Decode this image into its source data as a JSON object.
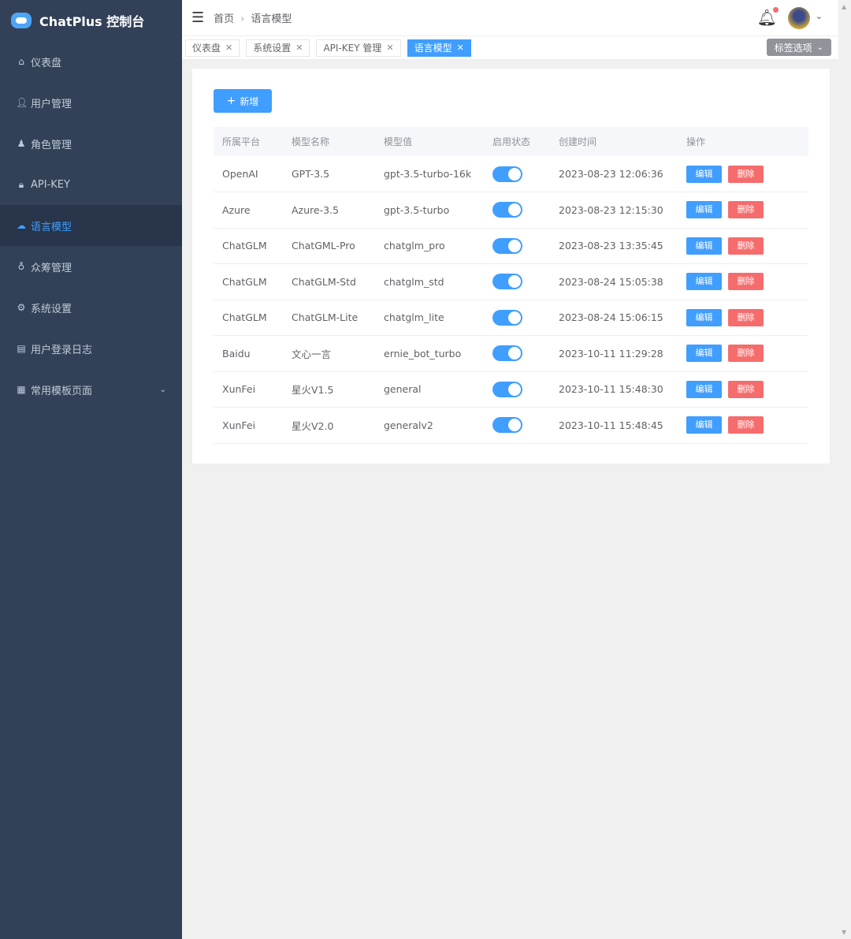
{
  "app": {
    "title": "ChatPlus 控制台"
  },
  "sidebar": {
    "items": [
      {
        "label": "仪表盘",
        "icon": "home-icon"
      },
      {
        "label": "用户管理",
        "icon": "user-icon"
      },
      {
        "label": "角色管理",
        "icon": "role-icon"
      },
      {
        "label": "API-KEY",
        "icon": "lock-icon"
      },
      {
        "label": "语言模型",
        "icon": "cloud-icon",
        "active": true
      },
      {
        "label": "众筹管理",
        "icon": "medal-icon"
      },
      {
        "label": "系统设置",
        "icon": "gear-icon"
      },
      {
        "label": "用户登录日志",
        "icon": "log-icon"
      },
      {
        "label": "常用模板页面",
        "icon": "grid-icon",
        "expandable": true
      }
    ]
  },
  "header": {
    "breadcrumb": [
      "首页",
      "语言模型"
    ]
  },
  "tabs": [
    {
      "label": "仪表盘"
    },
    {
      "label": "系统设置"
    },
    {
      "label": "API-KEY 管理"
    },
    {
      "label": "语言模型",
      "active": true
    }
  ],
  "tag_options": "标签选项",
  "add_button": "新增",
  "table": {
    "columns": [
      "所属平台",
      "模型名称",
      "模型值",
      "启用状态",
      "创建时间",
      "操作"
    ],
    "edit_label": "编辑",
    "delete_label": "删除",
    "rows": [
      {
        "platform": "OpenAI",
        "name": "GPT-3.5",
        "value": "gpt-3.5-turbo-16k",
        "enabled": true,
        "created": "2023-08-23 12:06:36"
      },
      {
        "platform": "Azure",
        "name": "Azure-3.5",
        "value": "gpt-3.5-turbo",
        "enabled": true,
        "created": "2023-08-23 12:15:30"
      },
      {
        "platform": "ChatGLM",
        "name": "ChatGML-Pro",
        "value": "chatglm_pro",
        "enabled": true,
        "created": "2023-08-23 13:35:45"
      },
      {
        "platform": "ChatGLM",
        "name": "ChatGLM-Std",
        "value": "chatglm_std",
        "enabled": true,
        "created": "2023-08-24 15:05:38"
      },
      {
        "platform": "ChatGLM",
        "name": "ChatGLM-Lite",
        "value": "chatglm_lite",
        "enabled": true,
        "created": "2023-08-24 15:06:15"
      },
      {
        "platform": "Baidu",
        "name": "文心一言",
        "value": "ernie_bot_turbo",
        "enabled": true,
        "created": "2023-10-11 11:29:28"
      },
      {
        "platform": "XunFei",
        "name": "星火V1.5",
        "value": "general",
        "enabled": true,
        "created": "2023-10-11 15:48:30"
      },
      {
        "platform": "XunFei",
        "name": "星火V2.0",
        "value": "generalv2",
        "enabled": true,
        "created": "2023-10-11 15:48:45"
      }
    ]
  },
  "colors": {
    "sidebar": "#324157",
    "accent": "#409eff",
    "danger": "#f56c6c"
  }
}
